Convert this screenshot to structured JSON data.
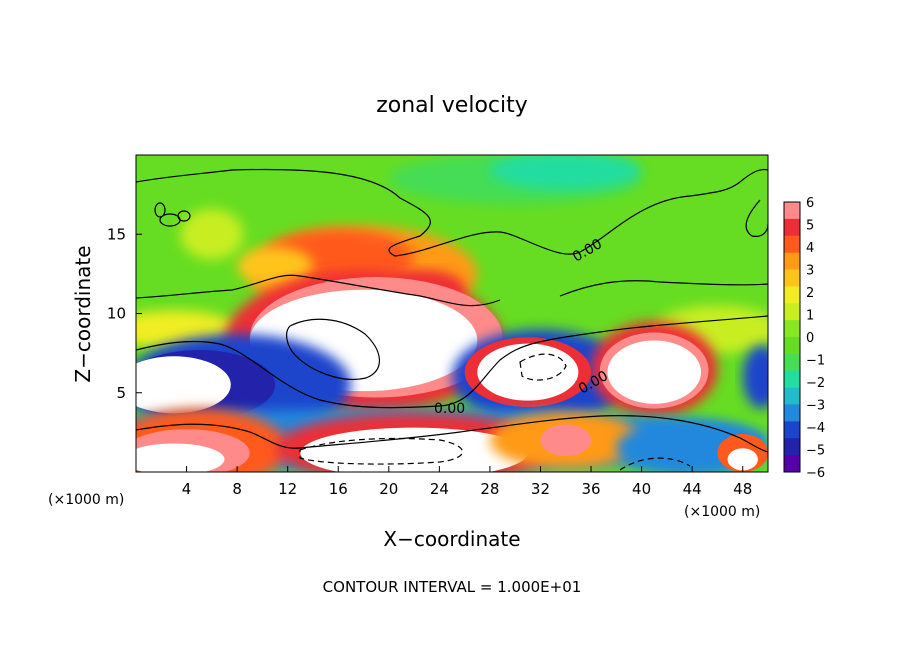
{
  "chart_data": {
    "type": "heatmap",
    "title": "zonal velocity",
    "xlabel": "X−coordinate",
    "ylabel": "Z−coordinate",
    "x_unit_left": "(×1000 m)",
    "x_unit_right": "(×1000 m)",
    "footer": "CONTOUR INTERVAL = 1.000E+01",
    "xlim": [
      0,
      50
    ],
    "ylim": [
      0,
      20
    ],
    "x_ticks": [
      "4",
      "8",
      "12",
      "16",
      "20",
      "24",
      "28",
      "32",
      "36",
      "40",
      "44",
      "48"
    ],
    "y_ticks": [
      "5",
      "10",
      "15"
    ],
    "colorbar_labels": [
      "6",
      "5",
      "4",
      "3",
      "2",
      "1",
      "0",
      "−1",
      "−2",
      "−3",
      "−4",
      "−5",
      "−6"
    ],
    "colorbar_range": [
      -6,
      6
    ],
    "contour_labels": [
      "0.00",
      "0.00",
      "0.00"
    ],
    "colors": {
      "background": "#66dd22",
      "positive_ramp": [
        "#88e622",
        "#c8ee22",
        "#f0ee22",
        "#ffc41a",
        "#ff9a14",
        "#ff5a1e",
        "#ee2e36",
        "#ff8a8a"
      ],
      "negative_ramp": [
        "#44dd55",
        "#22dda0",
        "#22bbcc",
        "#2288dd",
        "#1a44cc",
        "#2222aa",
        "#5500aa"
      ],
      "saturated": "#ffffff"
    }
  }
}
